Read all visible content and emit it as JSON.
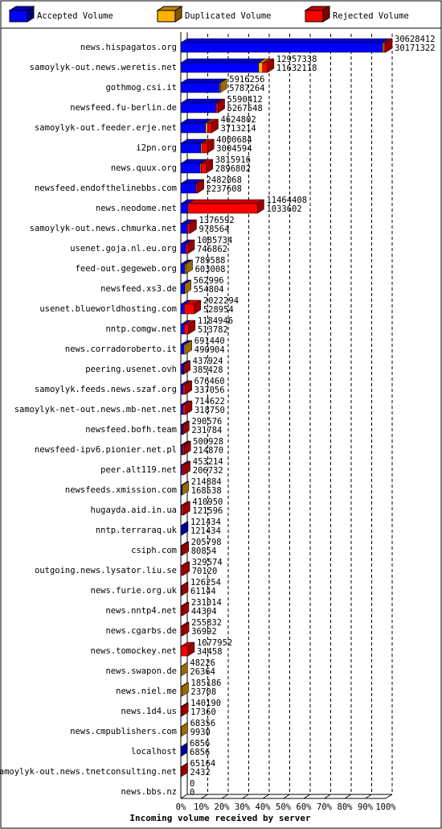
{
  "chart_data": {
    "type": "bar",
    "orientation": "horizontal",
    "stacked": true,
    "x_label": "Incoming volume received by server",
    "categories": [
      "news.hispagatos.org",
      "samoylyk-out.news.weretis.net",
      "gothmog.csi.it",
      "newsfeed.fu-berlin.de",
      "samoylyk-out.feeder.erje.net",
      "i2pn.org",
      "news.quux.org",
      "newsfeed.endofthelinebbs.com",
      "news.neodome.net",
      "samoylyk-out.news.chmurka.net",
      "usenet.goja.nl.eu.org",
      "feed-out.gegeweb.org",
      "newsfeed.xs3.de",
      "usenet.blueworldhosting.com",
      "nntp.comgw.net",
      "news.corradoroberto.it",
      "peering.usenet.ovh",
      "samoylyk.feeds.news.szaf.org",
      "samoylyk-net-out.news.mb-net.net",
      "newsfeed.bofh.team",
      "newsfeed-ipv6.pionier.net.pl",
      "peer.alt119.net",
      "newsfeeds.xmission.com",
      "hugayda.aid.in.ua",
      "nntp.terraraq.uk",
      "csiph.com",
      "outgoing.news.lysator.liu.se",
      "news.furie.org.uk",
      "news.nntp4.net",
      "news.cgarbs.de",
      "news.tomockey.net",
      "news.swapon.de",
      "news.niel.me",
      "news.1d4.us",
      "news.cmpublishers.com",
      "localhost",
      "samoylyk-out.news.tnetconsulting.net",
      "news.bbs.nz"
    ],
    "totals": [
      30628412,
      12957338,
      5916256,
      5590412,
      4624802,
      4000684,
      3815916,
      2482068,
      11464408,
      1376592,
      1085734,
      789588,
      562996,
      2022294,
      1184946,
      691440,
      437924,
      676460,
      714622,
      290576,
      500928,
      453214,
      214884,
      410950,
      121434,
      205798,
      329574,
      126254,
      231014,
      255832,
      1077952,
      48226,
      185186,
      140190,
      68356,
      6856,
      65164,
      0
    ],
    "series": [
      {
        "name": "Accepted Volume",
        "color": "#0000ff",
        "values": [
          30171322,
          11632118,
          5787264,
          5267548,
          3713214,
          3004594,
          2896802,
          2237608,
          1033602,
          978564,
          746862,
          603008,
          554804,
          528954,
          513782,
          490904,
          385428,
          337056,
          318750,
          231784,
          214870,
          206732,
          168538,
          121596,
          121434,
          80854,
          70120,
          61144,
          44304,
          36992,
          34458,
          26364,
          23708,
          17360,
          9930,
          6856,
          2432,
          0
        ]
      },
      {
        "name": "Duplicated Volume",
        "color": "#ffb000",
        "values": [
          200000,
          600000,
          128992,
          0,
          300000,
          200000,
          150000,
          0,
          0,
          0,
          0,
          186580,
          8192,
          0,
          0,
          200536,
          0,
          0,
          0,
          0,
          100000,
          0,
          46346,
          0,
          0,
          0,
          0,
          0,
          0,
          0,
          0,
          21862,
          161478,
          0,
          58426,
          0,
          0,
          0
        ]
      },
      {
        "name": "Rejected Volume",
        "color": "#ff0000",
        "values": [
          257090,
          725220,
          0,
          322864,
          611588,
          796090,
          769114,
          244460,
          10430806,
          398028,
          338872,
          0,
          0,
          1493340,
          671164,
          0,
          52496,
          339404,
          395872,
          58792,
          186058,
          246482,
          0,
          289354,
          0,
          124944,
          259454,
          65110,
          186710,
          218840,
          1043494,
          0,
          0,
          122830,
          0,
          0,
          62732,
          0
        ]
      }
    ],
    "xlim": [
      0,
      30628412
    ],
    "xticks": [
      {
        "value": 0,
        "label": "0%"
      },
      {
        "value": 3062841.2,
        "label": "10%"
      },
      {
        "value": 6125682.4,
        "label": "20%"
      },
      {
        "value": 9188523.6,
        "label": "30%"
      },
      {
        "value": 12251364.8,
        "label": "40%"
      },
      {
        "value": 15314206,
        "label": "50%"
      },
      {
        "value": 18377047.2,
        "label": "60%"
      },
      {
        "value": 21439888.4,
        "label": "70%"
      },
      {
        "value": 24502729.6,
        "label": "80%"
      },
      {
        "value": 27565570.8,
        "label": "90%"
      },
      {
        "value": 30628412,
        "label": "100%"
      }
    ],
    "grid": true
  }
}
